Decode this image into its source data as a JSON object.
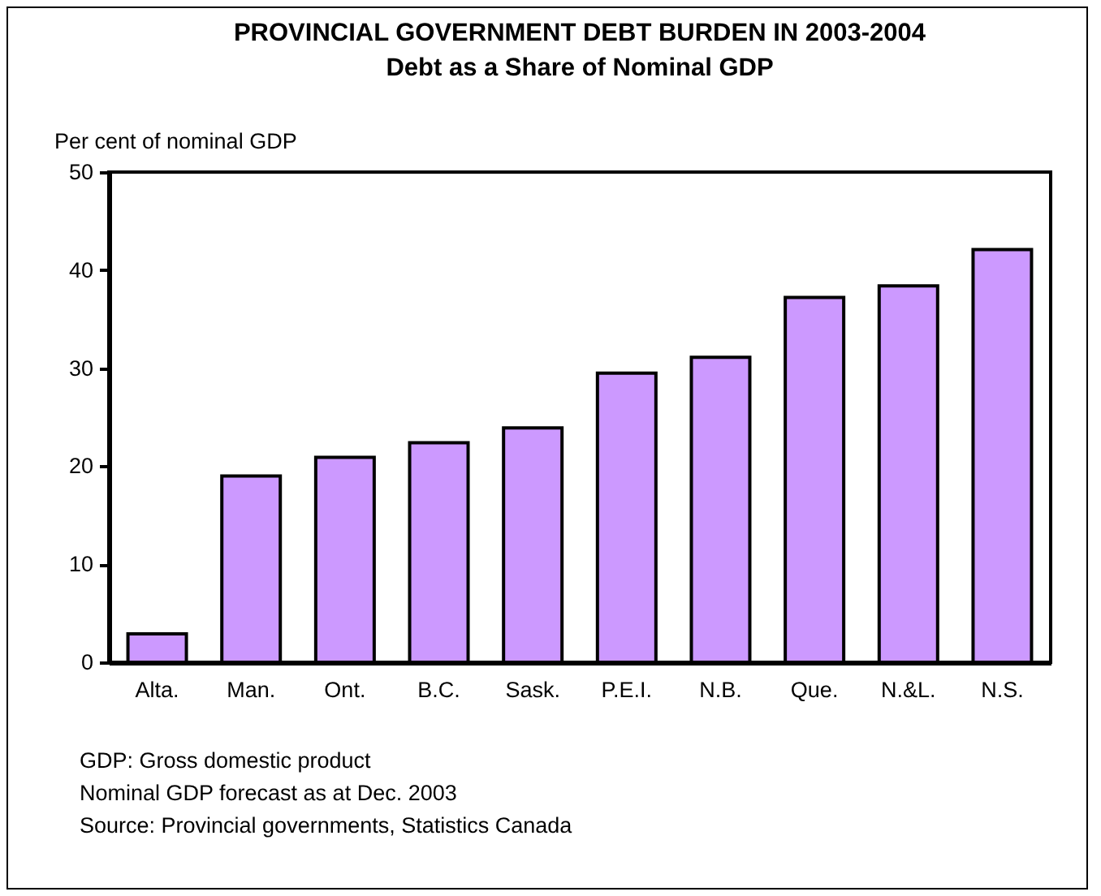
{
  "chart_data": {
    "type": "bar",
    "title": "PROVINCIAL GOVERNMENT DEBT BURDEN IN 2003-2004",
    "subtitle": "Debt as a Share of Nominal GDP",
    "ylabel": "Per cent of nominal GDP",
    "categories": [
      "Alta.",
      "Man.",
      "Ont.",
      "B.C.",
      "Sask.",
      "P.E.I.",
      "N.B.",
      "Que.",
      "N.&L.",
      "N.S."
    ],
    "values": [
      2.9,
      19.0,
      20.9,
      22.4,
      23.9,
      29.5,
      31.1,
      37.2,
      38.4,
      42.1
    ],
    "color": "#cc99ff",
    "ylim": [
      0,
      50
    ],
    "yticks": [
      0,
      10,
      20,
      30,
      40,
      50
    ],
    "grid": false,
    "annotations": [
      "GDP: Gross domestic product",
      "Nominal GDP forecast as at Dec. 2003",
      "Source: Provincial governments, Statistics Canada"
    ]
  }
}
